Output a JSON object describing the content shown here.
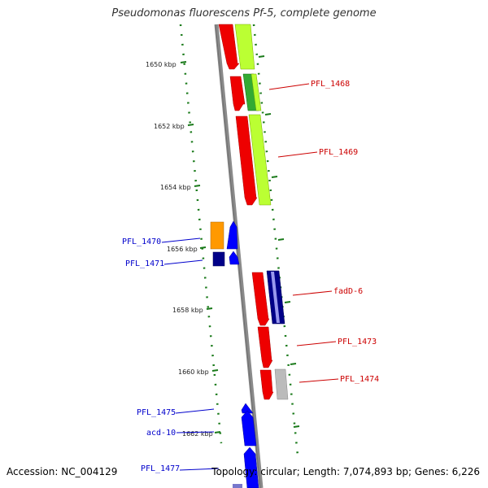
{
  "title": "Pseudomonas fluorescens Pf-5, complete genome",
  "footer": {
    "accession_label": "Accession:",
    "accession": "NC_004129",
    "topology_label": "Topology:",
    "topology": "circular",
    "length_label": "Length:",
    "length": "7,074,893 bp",
    "genes_label": "Genes:",
    "genes": "6,226"
  },
  "colors": {
    "forward_label": "#cc0000",
    "reverse_label": "#0000cc",
    "tick": "#1a7a1a",
    "backbone": "#888888"
  },
  "ticks": [
    {
      "label": "1650 kbp"
    },
    {
      "label": "1652 kbp"
    },
    {
      "label": "1654 kbp"
    },
    {
      "label": "1656 kbp"
    },
    {
      "label": "1658 kbp"
    },
    {
      "label": "1660 kbp"
    },
    {
      "label": "1662 kbp"
    }
  ],
  "gene_labels": [
    {
      "text": "PFL_1468",
      "strand": "forward"
    },
    {
      "text": "PFL_1469",
      "strand": "forward"
    },
    {
      "text": "PFL_1470",
      "strand": "reverse"
    },
    {
      "text": "PFL_1471",
      "strand": "reverse"
    },
    {
      "text": "fadD-6",
      "strand": "forward"
    },
    {
      "text": "PFL_1473",
      "strand": "forward"
    },
    {
      "text": "PFL_1474",
      "strand": "forward"
    },
    {
      "text": "PFL_1475",
      "strand": "reverse"
    },
    {
      "text": "acd-10",
      "strand": "reverse"
    },
    {
      "text": "PFL_1477",
      "strand": "reverse"
    }
  ]
}
